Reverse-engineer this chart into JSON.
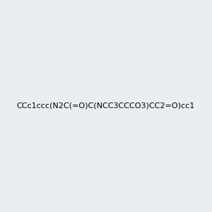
{
  "smiles": "CCc1ccc(N2C(=O)C(NCC3CCCO3)CC2=O)cc1",
  "image_size": 300,
  "background_color": "#e8eef2",
  "bond_color": "#1a1a1a",
  "atom_colors": {
    "N": "#0000ff",
    "O": "#ff0000"
  },
  "title": ""
}
